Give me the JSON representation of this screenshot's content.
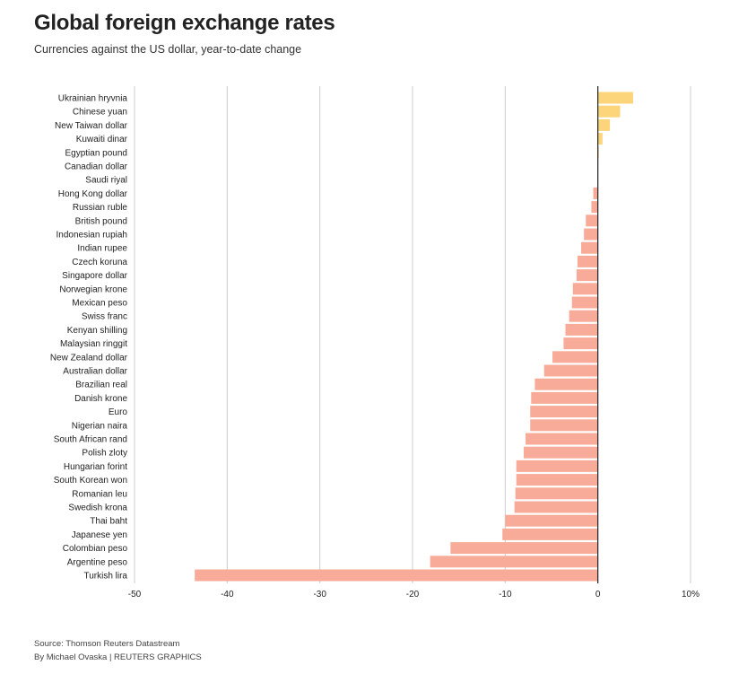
{
  "header": {
    "title": "Global foreign exchange rates",
    "subtitle": "Currencies against the US dollar, year-to-date change"
  },
  "footer": {
    "source": "Source: Thomson Reuters Datastream",
    "byline": "By Michael Ovaska | REUTERS GRAPHICS"
  },
  "colors": {
    "positive": "#fcd57a",
    "negative": "#f8ab98",
    "grid": "#cccccc",
    "zero_line": "#222222"
  },
  "chart_data": {
    "type": "bar",
    "orientation": "horizontal",
    "title": "Global foreign exchange rates",
    "subtitle": "Currencies against the US dollar, year-to-date change",
    "xlim": [
      -50,
      10
    ],
    "ticks": [
      -50,
      -40,
      -30,
      -20,
      -10,
      0,
      10
    ],
    "tick_labels": [
      "-50",
      "-40",
      "-30",
      "-20",
      "-10",
      "0",
      "10%"
    ],
    "grid": true,
    "categories": [
      "Ukrainian hryvnia",
      "Chinese yuan",
      "New Taiwan dollar",
      "Kuwaiti dinar",
      "Egyptian pound",
      "Canadian dollar",
      "Saudi riyal",
      "Hong Kong dollar",
      "Russian ruble",
      "British pound",
      "Indonesian rupiah",
      "Indian rupee",
      "Czech koruna",
      "Singapore dollar",
      "Norwegian krone",
      "Mexican peso",
      "Swiss franc",
      "Kenyan shilling",
      "Malaysian ringgit",
      "New Zealand dollar",
      "Australian dollar",
      "Brazilian real",
      "Danish krone",
      "Euro",
      "Nigerian naira",
      "South African rand",
      "Polish zloty",
      "Hungarian forint",
      "South Korean won",
      "Romanian leu",
      "Swedish krona",
      "Thai baht",
      "Japanese yen",
      "Colombian peso",
      "Argentine peso",
      "Turkish lira"
    ],
    "values": [
      3.8,
      2.4,
      1.3,
      0.5,
      0.1,
      0.0,
      0.0,
      -0.5,
      -0.7,
      -1.3,
      -1.5,
      -1.8,
      -2.2,
      -2.3,
      -2.7,
      -2.8,
      -3.1,
      -3.5,
      -3.7,
      -4.9,
      -5.8,
      -6.8,
      -7.2,
      -7.3,
      -7.3,
      -7.8,
      -8.0,
      -8.8,
      -8.8,
      -8.9,
      -9.0,
      -10.0,
      -10.3,
      -15.9,
      -18.1,
      -43.5
    ]
  }
}
